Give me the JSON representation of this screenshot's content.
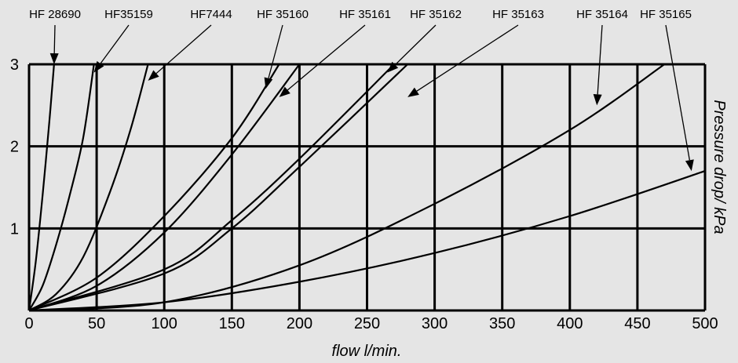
{
  "colors": {
    "background": "#e5e5e5",
    "ink": "#000000"
  },
  "chart_data": {
    "type": "line",
    "xlabel": "flow l/min.",
    "ylabel": "Pressure drop/ kPa",
    "xlim": [
      0,
      500
    ],
    "ylim": [
      0,
      3
    ],
    "x_ticks": [
      "0",
      "50",
      "100",
      "150",
      "200",
      "250",
      "300",
      "350",
      "400",
      "450",
      "500"
    ],
    "y_ticks": [
      "1",
      "2",
      "3"
    ],
    "grid": true,
    "legend": "callout labels above plot with arrows",
    "series": [
      {
        "name": "HF 28690",
        "points": [
          [
            0,
            0
          ],
          [
            5,
            0.6
          ],
          [
            10,
            1.4
          ],
          [
            15,
            2.3
          ],
          [
            18.5,
            3
          ]
        ]
      },
      {
        "name": "HF35159",
        "points": [
          [
            0,
            0
          ],
          [
            10,
            0.3
          ],
          [
            20,
            0.8
          ],
          [
            30,
            1.4
          ],
          [
            40,
            2.1
          ],
          [
            48,
            3
          ]
        ]
      },
      {
        "name": "HF7444",
        "points": [
          [
            0,
            0
          ],
          [
            20,
            0.2
          ],
          [
            40,
            0.65
          ],
          [
            60,
            1.45
          ],
          [
            75,
            2.2
          ],
          [
            88,
            3
          ]
        ]
      },
      {
        "name": "HF 35160",
        "points": [
          [
            0,
            0
          ],
          [
            50,
            0.4
          ],
          [
            100,
            1.15
          ],
          [
            150,
            2.1
          ],
          [
            185,
            3
          ]
        ]
      },
      {
        "name": "HF 35161",
        "points": [
          [
            0,
            0
          ],
          [
            50,
            0.3
          ],
          [
            100,
            0.95
          ],
          [
            150,
            1.9
          ],
          [
            200,
            3
          ]
        ]
      },
      {
        "name": "HF 35162",
        "points": [
          [
            0,
            0
          ],
          [
            100,
            0.5
          ],
          [
            150,
            1.1
          ],
          [
            200,
            1.85
          ],
          [
            270,
            3
          ]
        ]
      },
      {
        "name": "HF 35163",
        "points": [
          [
            0,
            0
          ],
          [
            100,
            0.45
          ],
          [
            150,
            1.0
          ],
          [
            200,
            1.75
          ],
          [
            280,
            3
          ]
        ]
      },
      {
        "name": "HF 35164",
        "points": [
          [
            0,
            0
          ],
          [
            100,
            0.1
          ],
          [
            200,
            0.55
          ],
          [
            300,
            1.3
          ],
          [
            400,
            2.2
          ],
          [
            470,
            3
          ]
        ]
      },
      {
        "name": "HF 35165",
        "points": [
          [
            0,
            0
          ],
          [
            100,
            0.1
          ],
          [
            200,
            0.35
          ],
          [
            300,
            0.7
          ],
          [
            400,
            1.15
          ],
          [
            500,
            1.7
          ]
        ]
      }
    ],
    "callouts": [
      {
        "series": "HF 28690",
        "target": [
          18.5,
          3
        ]
      },
      {
        "series": "HF35159",
        "target": [
          48,
          2.9
        ]
      },
      {
        "series": "HF7444",
        "target": [
          88,
          2.8
        ]
      },
      {
        "series": "HF 35160",
        "target": [
          175,
          2.7
        ]
      },
      {
        "series": "HF 35161",
        "target": [
          185,
          2.6
        ]
      },
      {
        "series": "HF 35162",
        "target": [
          265,
          2.9
        ]
      },
      {
        "series": "HF 35163",
        "target": [
          280,
          2.6
        ]
      },
      {
        "series": "HF 35164",
        "target": [
          420,
          2.5
        ]
      },
      {
        "series": "HF 35165",
        "target": [
          490,
          1.7
        ]
      }
    ]
  }
}
